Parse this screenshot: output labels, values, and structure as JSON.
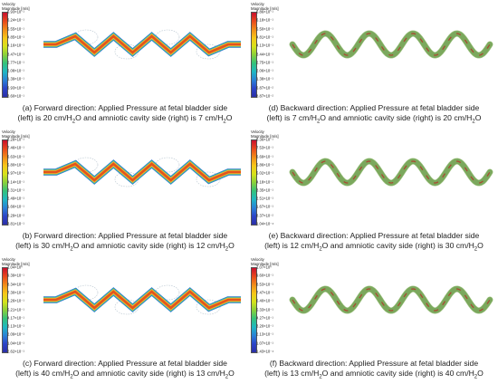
{
  "legend_title": "Velocity\nMagnitude [m/s]",
  "panels": [
    {
      "id": "a",
      "ticks": [
        "6.93×10⁻¹",
        "6.24×10⁻¹",
        "5.55×10⁻¹",
        "4.85×10⁻¹",
        "4.16×10⁻¹",
        "3.47×10⁻¹",
        "2.77×10⁻¹",
        "2.08×10⁻¹",
        "1.39×10⁻¹",
        "6.93×10⁻²",
        "3.60×10⁻¹"
      ],
      "caption": {
        "line1": "(a) Forward direction: Applied Pressure at fetal bladder side",
        "line2_pre": "(left) is 20 cm/H",
        "line2_mid": "O and amniotic cavity side (right) is 7 cm/H",
        "line2_end": "O"
      },
      "style": "forward"
    },
    {
      "id": "d",
      "ticks": [
        "6.86×10⁻¹",
        "6.18×10⁻¹",
        "5.50×10⁻¹",
        "4.81×10⁻¹",
        "4.13×10⁻¹",
        "3.44×10⁻¹",
        "2.75×10⁻¹",
        "2.06×10⁻¹",
        "1.38×10⁻¹",
        "6.87×10⁻²",
        "8.87×10⁻²"
      ],
      "caption": {
        "line1": "(d) Backward direction: Applied Pressure at fetal bladder side",
        "line2_pre": "(left) is 7 cm/H",
        "line2_mid": "O and amniotic cavity side (right) is 20 cm/H",
        "line2_end": "O"
      },
      "style": "backward"
    },
    {
      "id": "b",
      "ticks": [
        "8.28×10⁻¹",
        "7.46×10⁻¹",
        "6.63×10⁻¹",
        "5.80×10⁻¹",
        "4.97×10⁻¹",
        "4.14×10⁻¹",
        "3.31×10⁻¹",
        "2.49×10⁻¹",
        "1.66×10⁻¹",
        "8.29×10⁻²",
        "3.81×10⁻¹"
      ],
      "caption": {
        "line1": "(b) Forward direction: Applied Pressure at fetal bladder side",
        "line2_pre": "(left) is 30 cm/H",
        "line2_mid": "O and amniotic cavity side (right) is 12 cm/H",
        "line2_end": "O"
      },
      "style": "forward"
    },
    {
      "id": "e",
      "ticks": [
        "8.36×10⁻¹",
        "7.53×10⁻¹",
        "6.69×10⁻¹",
        "5.86×10⁻¹",
        "5.02×10⁻¹",
        "4.18×10⁻¹",
        "3.35×10⁻¹",
        "2.51×10⁻¹",
        "1.67×10⁻¹",
        "8.37×10⁻²",
        "1.04×10⁻⁴"
      ],
      "caption": {
        "line1": "(e) Backward direction: Applied Pressure at fetal bladder side",
        "line2_pre": "(left) is 12 cm/H",
        "line2_mid": "O and amniotic cavity side (right) is 30 cm/H",
        "line2_end": "O"
      },
      "style": "backward"
    },
    {
      "id": "c",
      "ticks": [
        "1.04×10⁰",
        "9.39×10⁻¹",
        "8.34×10⁻¹",
        "7.30×10⁻¹",
        "6.26×10⁻¹",
        "5.21×10⁻¹",
        "4.17×10⁻¹",
        "3.13×10⁻¹",
        "2.09×10⁻¹",
        "1.04×10⁻¹",
        "2.62×10⁻¹"
      ],
      "caption": {
        "line1": "(c) Forward direction: Applied Pressure at fetal bladder side",
        "line2_pre": "(left) is 40 cm/H",
        "line2_mid": "O and amniotic cavity side (right) is 13 cm/H",
        "line2_end": "O"
      },
      "style": "forward"
    },
    {
      "id": "f",
      "ticks": [
        "1.07×10⁰",
        "9.60×10⁻¹",
        "8.53×10⁻¹",
        "7.47×10⁻¹",
        "6.40×10⁻¹",
        "5.33×10⁻¹",
        "4.27×10⁻¹",
        "3.20×10⁻¹",
        "2.13×10⁻¹",
        "1.07×10⁻¹",
        "1.43×10⁻⁴"
      ],
      "caption": {
        "line1": "(f) Backward direction: Applied Pressure at fetal bladder side",
        "line2_pre": "(left) is 13 cm/H",
        "line2_mid": "O and amniotic cavity side (right) is 40 cm/H",
        "line2_end": "O"
      },
      "style": "backward"
    }
  ],
  "subscript": "2",
  "colors": {
    "bar": [
      "#c8102e",
      "#e8481c",
      "#f08c1a",
      "#f6c619",
      "#d6e21b",
      "#8ad03a",
      "#35c27a",
      "#1fb8c2",
      "#2a82d6",
      "#2c44c8",
      "#2b2fa6"
    ],
    "forward_core": "#e2541d",
    "forward_mid": "#f3b52a",
    "forward_edge": "#37b9a8",
    "forward_outer": "#2d6fd0",
    "backward_tube": "#a6c98a",
    "backward_core": "#b23a2a",
    "backward_mark": "#6a9a4a",
    "stream": "#b7c4cf"
  }
}
